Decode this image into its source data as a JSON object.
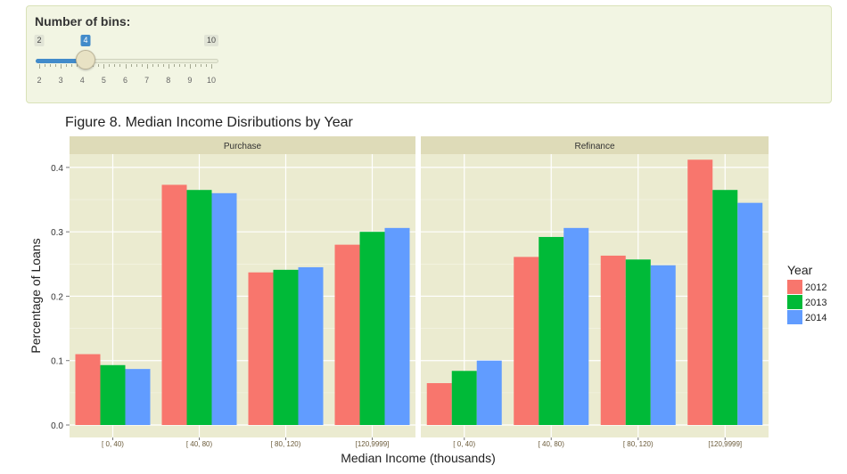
{
  "controls": {
    "bins_label": "Number of bins:",
    "slider": {
      "min": 2,
      "max": 10,
      "value": 4,
      "min_label": "2",
      "max_label": "10",
      "value_label": "4",
      "ticks": [
        "2",
        "3",
        "4",
        "5",
        "6",
        "7",
        "8",
        "9",
        "10"
      ]
    }
  },
  "chart_data": {
    "type": "bar",
    "title": "Figure 8. Median Income Disributions by Year",
    "xlabel": "Median Income (thousands)",
    "ylabel": "Percentage of Loans",
    "ylim": [
      0,
      0.44
    ],
    "yticks": [
      "0.0",
      "0.1",
      "0.2",
      "0.3",
      "0.4"
    ],
    "categories": [
      "[  0,  40)",
      "[ 40,  80)",
      "[ 80, 120)",
      "[120,9999]"
    ],
    "legend": {
      "title": "Year",
      "position": "right"
    },
    "colors": {
      "2012": "#f8766d",
      "2013": "#00ba38",
      "2014": "#619cff"
    },
    "facets": [
      {
        "label": "Purchase",
        "series": [
          {
            "name": "2012",
            "values": [
              0.11,
              0.373,
              0.237,
              0.28
            ]
          },
          {
            "name": "2013",
            "values": [
              0.093,
              0.365,
              0.241,
              0.3
            ]
          },
          {
            "name": "2014",
            "values": [
              0.087,
              0.36,
              0.245,
              0.306
            ]
          }
        ]
      },
      {
        "label": "Refinance",
        "series": [
          {
            "name": "2012",
            "values": [
              0.065,
              0.261,
              0.263,
              0.412
            ]
          },
          {
            "name": "2013",
            "values": [
              0.084,
              0.292,
              0.257,
              0.365
            ]
          },
          {
            "name": "2014",
            "values": [
              0.1,
              0.306,
              0.248,
              0.345
            ]
          }
        ]
      }
    ],
    "grid": true
  }
}
